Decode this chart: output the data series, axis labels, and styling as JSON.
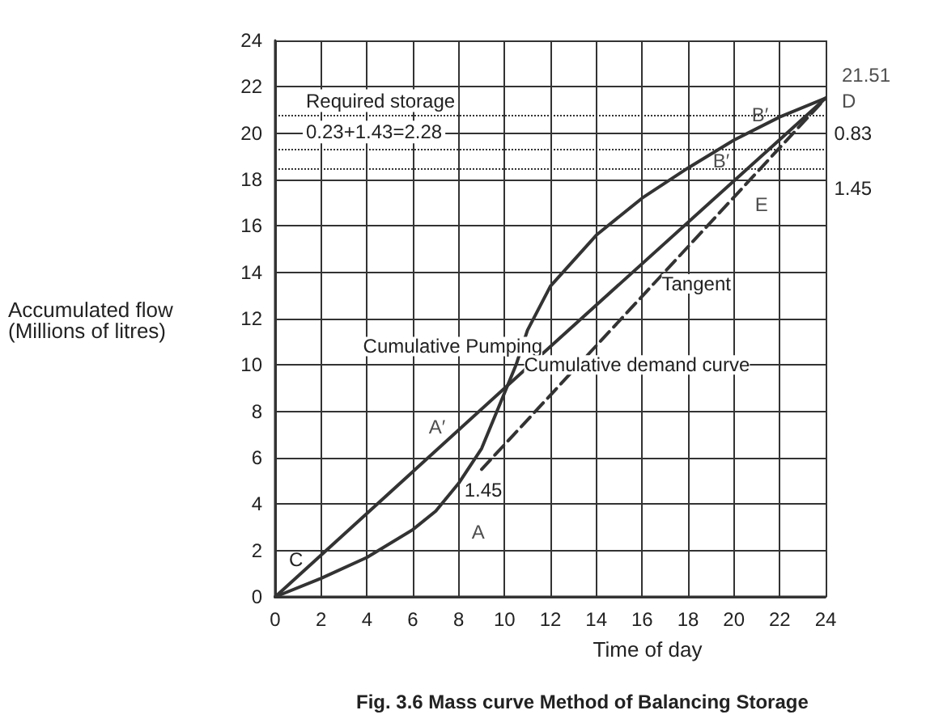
{
  "chart_data": {
    "type": "line",
    "title": "Fig. 3.6 Mass curve Method of Balancing Storage",
    "xlabel": "Time of day",
    "ylabel": "Accumulated flow\n(Millions of litres)",
    "xlim": [
      0,
      24
    ],
    "ylim": [
      0,
      24
    ],
    "xticks": [
      0,
      2,
      4,
      6,
      8,
      10,
      12,
      14,
      16,
      18,
      20,
      22,
      24
    ],
    "yticks": [
      0,
      2,
      4,
      6,
      8,
      10,
      12,
      14,
      16,
      18,
      20,
      22,
      24
    ],
    "grid": true,
    "legend": false,
    "marker": "none",
    "series": [
      {
        "name": "Cumulative Pumping",
        "color": "#333333",
        "line_style": "solid",
        "x": [
          0,
          12,
          24
        ],
        "values": [
          0,
          10.8,
          21.51
        ]
      },
      {
        "name": "Cumulative demand curve",
        "color": "#333333",
        "line_style": "solid",
        "x": [
          0,
          2,
          4,
          6,
          7,
          8,
          9,
          10,
          10.5,
          11,
          12,
          14,
          16,
          18,
          20,
          22,
          24
        ],
        "values": [
          0,
          0.8,
          1.7,
          2.9,
          3.7,
          4.9,
          6.4,
          8.8,
          10,
          11.5,
          13.4,
          15.6,
          17.2,
          18.5,
          19.7,
          20.7,
          21.51
        ]
      },
      {
        "name": "Tangent",
        "color": "#333333",
        "line_style": "dashed",
        "x": [
          9,
          16.5,
          24
        ],
        "values": [
          5.5,
          13.5,
          21.51
        ]
      }
    ],
    "ref_lines": [
      {
        "axis": "y",
        "value": 20.8,
        "line_style": "dotted",
        "color": "#333333"
      },
      {
        "axis": "y",
        "value": 19.3,
        "line_style": "dotted",
        "color": "#333333"
      },
      {
        "axis": "y",
        "value": 18.5,
        "line_style": "dotted",
        "color": "#333333"
      }
    ],
    "annotations": [
      "Required storage",
      "0.23+1.43=2.28",
      "C",
      "1.45",
      "0.83",
      "1.45",
      {
        "text": "A",
        "x": 8,
        "y": 4.9
      },
      {
        "text": "A′",
        "x": 7.4,
        "y": 6.63
      },
      {
        "text": "B′",
        "x": 20.5,
        "y": 19.95
      },
      {
        "text": "B′",
        "x": 20.5,
        "y": 18.37
      },
      {
        "text": "E",
        "x": 20.5,
        "y": 17.77
      },
      {
        "text": "D",
        "x": 24,
        "y": 21.51
      },
      {
        "text": "21.51",
        "x": 24,
        "y": 21.51
      }
    ]
  }
}
